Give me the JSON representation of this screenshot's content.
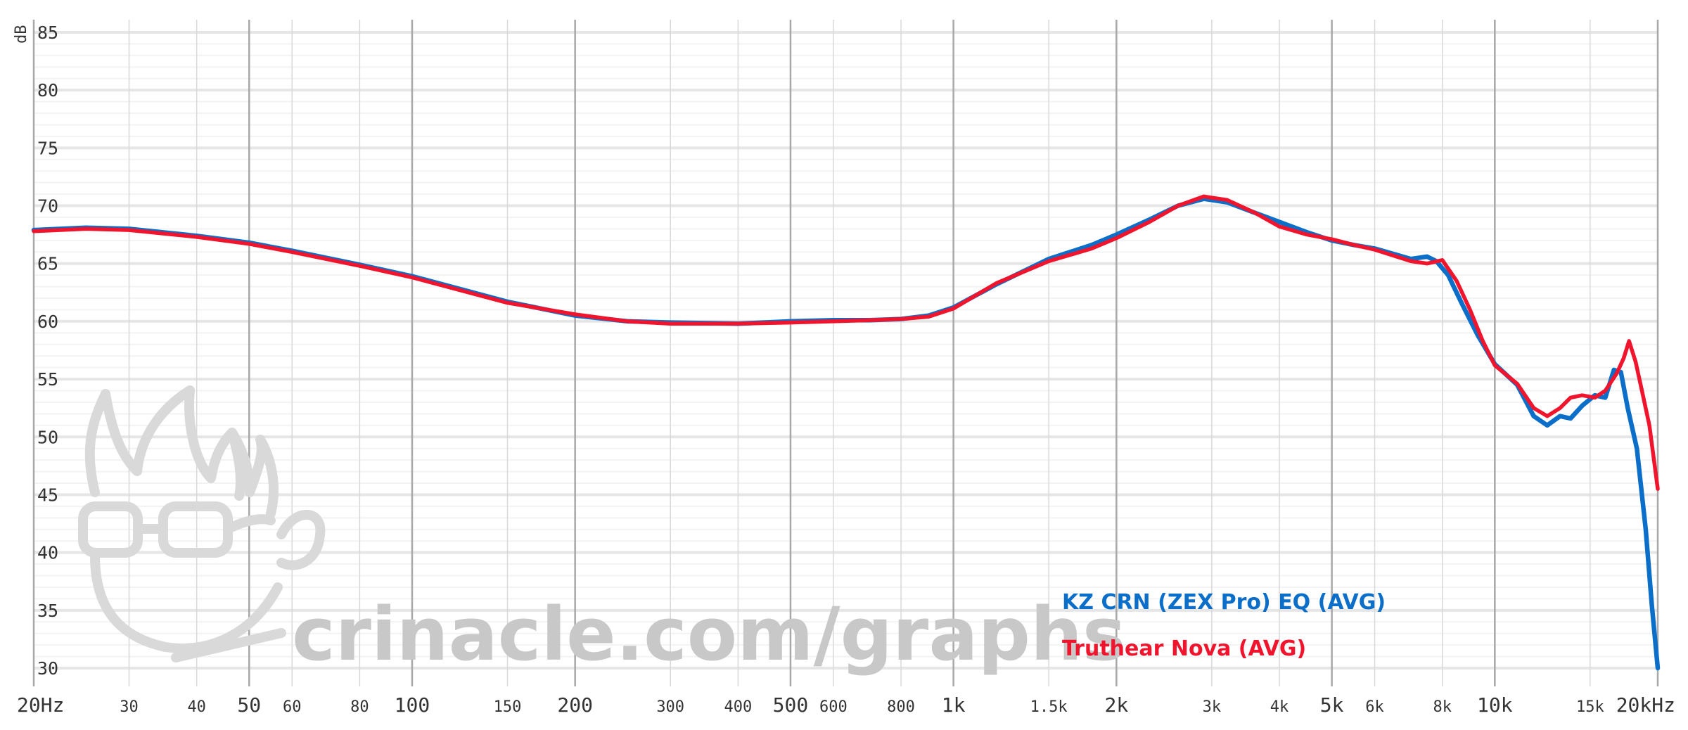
{
  "chart_data": {
    "type": "line",
    "xscale": "log",
    "xlim": [
      20,
      20000
    ],
    "ylim": [
      30,
      85
    ],
    "ylabel": "dB",
    "grid": true,
    "legend_position": "bottom-right",
    "y_ticks": [
      85,
      80,
      75,
      70,
      65,
      60,
      55,
      50,
      45,
      40,
      35,
      30
    ],
    "x_ticks": [
      {
        "v": 20,
        "label": "20Hz",
        "major": true
      },
      {
        "v": 30,
        "label": "30",
        "major": false
      },
      {
        "v": 40,
        "label": "40",
        "major": false
      },
      {
        "v": 50,
        "label": "50",
        "major": true
      },
      {
        "v": 60,
        "label": "60",
        "major": false
      },
      {
        "v": 80,
        "label": "80",
        "major": false
      },
      {
        "v": 100,
        "label": "100",
        "major": true
      },
      {
        "v": 150,
        "label": "150",
        "major": false
      },
      {
        "v": 200,
        "label": "200",
        "major": true
      },
      {
        "v": 300,
        "label": "300",
        "major": false
      },
      {
        "v": 400,
        "label": "400",
        "major": false
      },
      {
        "v": 500,
        "label": "500",
        "major": true
      },
      {
        "v": 600,
        "label": "600",
        "major": false
      },
      {
        "v": 800,
        "label": "800",
        "major": false
      },
      {
        "v": 1000,
        "label": "1k",
        "major": true
      },
      {
        "v": 1500,
        "label": "1.5k",
        "major": false
      },
      {
        "v": 2000,
        "label": "2k",
        "major": true
      },
      {
        "v": 3000,
        "label": "3k",
        "major": false
      },
      {
        "v": 4000,
        "label": "4k",
        "major": false
      },
      {
        "v": 5000,
        "label": "5k",
        "major": true
      },
      {
        "v": 6000,
        "label": "6k",
        "major": false
      },
      {
        "v": 8000,
        "label": "8k",
        "major": false
      },
      {
        "v": 10000,
        "label": "10k",
        "major": true
      },
      {
        "v": 15000,
        "label": "15k",
        "major": false
      },
      {
        "v": 20000,
        "label": "20kHz",
        "major": true
      }
    ],
    "series": [
      {
        "name": "KZ CRN (ZEX Pro) EQ (AVG)",
        "color": "#0b6fc9",
        "points": [
          [
            20,
            67.9
          ],
          [
            25,
            68.1
          ],
          [
            30,
            68.0
          ],
          [
            40,
            67.4
          ],
          [
            50,
            66.8
          ],
          [
            60,
            66.1
          ],
          [
            80,
            64.9
          ],
          [
            100,
            63.9
          ],
          [
            150,
            61.7
          ],
          [
            200,
            60.5
          ],
          [
            250,
            60.0
          ],
          [
            300,
            59.9
          ],
          [
            400,
            59.8
          ],
          [
            500,
            60.0
          ],
          [
            600,
            60.1
          ],
          [
            700,
            60.1
          ],
          [
            800,
            60.2
          ],
          [
            900,
            60.5
          ],
          [
            1000,
            61.2
          ],
          [
            1200,
            63.2
          ],
          [
            1500,
            65.4
          ],
          [
            1800,
            66.6
          ],
          [
            2000,
            67.5
          ],
          [
            2300,
            68.8
          ],
          [
            2600,
            70.0
          ],
          [
            2900,
            70.6
          ],
          [
            3200,
            70.3
          ],
          [
            3600,
            69.4
          ],
          [
            4000,
            68.6
          ],
          [
            4500,
            67.7
          ],
          [
            5000,
            67.0
          ],
          [
            5500,
            66.6
          ],
          [
            6000,
            66.3
          ],
          [
            7000,
            65.4
          ],
          [
            7500,
            65.6
          ],
          [
            7800,
            65.2
          ],
          [
            8200,
            64.0
          ],
          [
            8700,
            61.5
          ],
          [
            9300,
            58.8
          ],
          [
            10000,
            56.3
          ],
          [
            11000,
            54.5
          ],
          [
            11800,
            51.8
          ],
          [
            12500,
            51.0
          ],
          [
            13200,
            51.8
          ],
          [
            13800,
            51.6
          ],
          [
            14500,
            52.7
          ],
          [
            15300,
            53.6
          ],
          [
            16000,
            53.4
          ],
          [
            16600,
            55.8
          ],
          [
            17100,
            55.6
          ],
          [
            17600,
            52.5
          ],
          [
            18300,
            49.0
          ],
          [
            19000,
            42.0
          ],
          [
            19500,
            35.5
          ],
          [
            20000,
            30.0
          ]
        ]
      },
      {
        "name": "Truthear Nova (AVG)",
        "color": "#f0142d",
        "points": [
          [
            20,
            67.8
          ],
          [
            25,
            68.0
          ],
          [
            30,
            67.9
          ],
          [
            40,
            67.3
          ],
          [
            50,
            66.7
          ],
          [
            60,
            66.0
          ],
          [
            80,
            64.8
          ],
          [
            100,
            63.8
          ],
          [
            150,
            61.6
          ],
          [
            200,
            60.6
          ],
          [
            250,
            60.0
          ],
          [
            300,
            59.8
          ],
          [
            400,
            59.8
          ],
          [
            500,
            59.9
          ],
          [
            600,
            60.0
          ],
          [
            700,
            60.1
          ],
          [
            800,
            60.2
          ],
          [
            900,
            60.4
          ],
          [
            1000,
            61.1
          ],
          [
            1200,
            63.3
          ],
          [
            1500,
            65.2
          ],
          [
            1800,
            66.3
          ],
          [
            2000,
            67.2
          ],
          [
            2300,
            68.6
          ],
          [
            2600,
            70.0
          ],
          [
            2900,
            70.8
          ],
          [
            3200,
            70.5
          ],
          [
            3600,
            69.4
          ],
          [
            4000,
            68.2
          ],
          [
            4500,
            67.5
          ],
          [
            5000,
            67.1
          ],
          [
            5500,
            66.6
          ],
          [
            6000,
            66.2
          ],
          [
            7000,
            65.2
          ],
          [
            7500,
            65.0
          ],
          [
            8000,
            65.3
          ],
          [
            8500,
            63.5
          ],
          [
            9000,
            61.0
          ],
          [
            9500,
            58.3
          ],
          [
            10000,
            56.2
          ],
          [
            11000,
            54.6
          ],
          [
            11800,
            52.5
          ],
          [
            12500,
            51.8
          ],
          [
            13200,
            52.5
          ],
          [
            13800,
            53.4
          ],
          [
            14500,
            53.6
          ],
          [
            15300,
            53.4
          ],
          [
            16000,
            54.0
          ],
          [
            16800,
            55.5
          ],
          [
            17300,
            56.8
          ],
          [
            17700,
            58.3
          ],
          [
            18200,
            56.5
          ],
          [
            18700,
            54.0
          ],
          [
            19300,
            51.0
          ],
          [
            20000,
            45.5
          ]
        ]
      }
    ]
  },
  "watermark": {
    "text": "crinacle.com/graphs",
    "icon": "crinacle-mascot-icon"
  }
}
